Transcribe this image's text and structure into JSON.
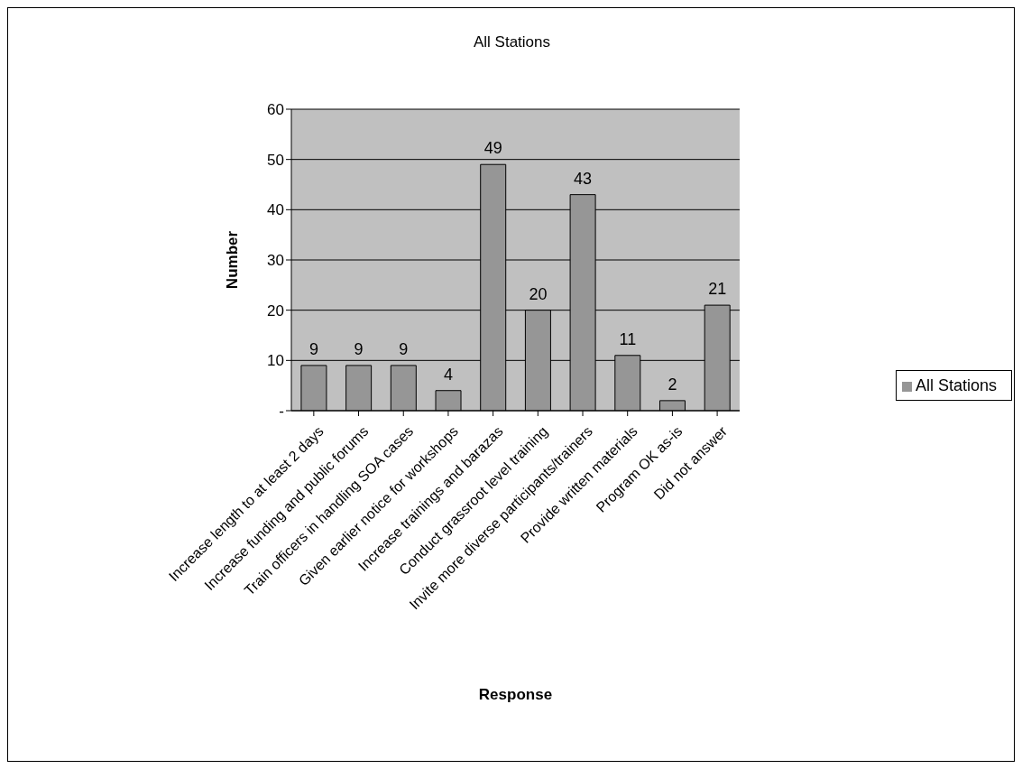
{
  "chart_data": {
    "type": "bar",
    "title": "All Stations",
    "xlabel": "Response",
    "ylabel": "Number",
    "categories": [
      "Increase length to at least 2 days",
      "Increase funding and public forums",
      "Train officers in handling SOA cases",
      "Given earlier notice for workshops",
      "Increase trainings and barazas",
      "Conduct grassroot level training",
      "Invite more diverse participants/trainers",
      "Provide written materials",
      "Program OK as-is",
      "Did not answer"
    ],
    "series": [
      {
        "name": "All Stations",
        "color": "#969696",
        "values": [
          9,
          9,
          9,
          4,
          49,
          20,
          43,
          11,
          2,
          21
        ]
      }
    ],
    "ylim": [
      0,
      60
    ],
    "yticks": [
      {
        "value": 0,
        "label": "-"
      },
      10,
      20,
      30,
      40,
      50,
      60
    ],
    "grid": "y",
    "legend": "right",
    "data_labels": true
  }
}
